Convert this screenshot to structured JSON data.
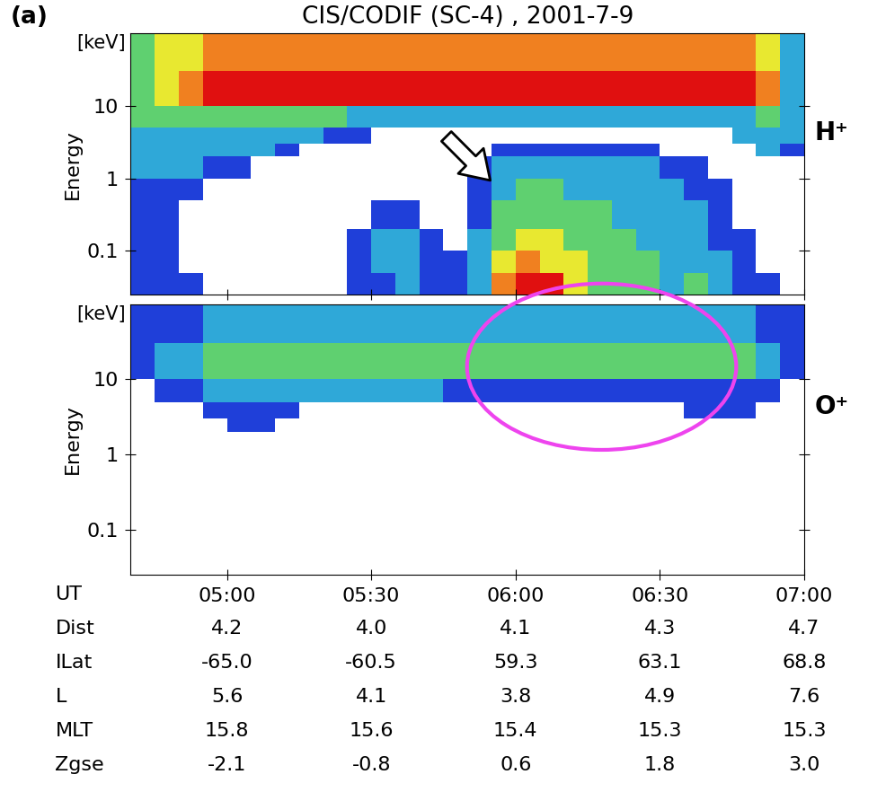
{
  "chart_data": [
    {
      "type": "heatmap",
      "panel_label": "(a)",
      "title": "CIS/CODIF (SC-4) , 2001-7-9",
      "y_label": "Energy",
      "unit_label": "[keV]",
      "species_label": "H⁺",
      "log": "y",
      "tick_labels": "y",
      "xlim": [
        280,
        420
      ],
      "xticks": [
        {
          "value": 300,
          "label": "05:00"
        },
        {
          "value": 330,
          "label": "05:30"
        },
        {
          "value": 360,
          "label": "06:00"
        },
        {
          "value": 390,
          "label": "06:30"
        },
        {
          "value": 420,
          "label": "07:00"
        }
      ],
      "ylim": [
        0.025,
        100
      ],
      "yticks": [
        0.1,
        1,
        10
      ],
      "x_edges": [
        280,
        285,
        290,
        295,
        300,
        305,
        310,
        315,
        320,
        325,
        330,
        335,
        340,
        345,
        350,
        355,
        360,
        365,
        370,
        375,
        380,
        385,
        390,
        395,
        400,
        405,
        410,
        415,
        420
      ],
      "y_edges": [
        0.025,
        0.05,
        0.1,
        0.2,
        0.5,
        1,
        2,
        3,
        5,
        10,
        30,
        100
      ],
      "cell_range": [
        0,
        6
      ],
      "colors": [
        "#ffffff",
        "#1f3fd9",
        "#2fa8d8",
        "#5fd070",
        "#e8e830",
        "#f08020",
        "#e01010"
      ],
      "cells": [
        [
          1,
          1,
          1,
          0,
          0,
          0,
          0,
          0,
          0,
          1,
          1,
          2,
          1,
          1,
          2,
          5,
          6,
          6,
          4,
          3,
          3,
          3,
          2,
          3,
          2,
          1,
          1,
          0
        ],
        [
          1,
          1,
          0,
          0,
          0,
          0,
          0,
          0,
          0,
          1,
          2,
          2,
          1,
          1,
          2,
          4,
          5,
          4,
          4,
          3,
          3,
          3,
          2,
          2,
          2,
          1,
          0,
          0
        ],
        [
          1,
          1,
          0,
          0,
          0,
          0,
          0,
          0,
          0,
          1,
          2,
          2,
          1,
          0,
          2,
          3,
          4,
          4,
          3,
          3,
          3,
          2,
          2,
          2,
          1,
          1,
          0,
          0
        ],
        [
          1,
          1,
          0,
          0,
          0,
          0,
          0,
          0,
          0,
          0,
          1,
          1,
          0,
          0,
          1,
          3,
          3,
          3,
          3,
          3,
          2,
          2,
          2,
          2,
          1,
          0,
          0,
          0
        ],
        [
          1,
          1,
          1,
          0,
          0,
          0,
          0,
          0,
          0,
          0,
          0,
          0,
          0,
          0,
          1,
          2,
          3,
          3,
          2,
          2,
          2,
          2,
          2,
          1,
          1,
          0,
          0,
          0
        ],
        [
          2,
          2,
          2,
          1,
          1,
          0,
          0,
          0,
          0,
          0,
          0,
          0,
          0,
          0,
          1,
          2,
          2,
          2,
          2,
          2,
          2,
          2,
          1,
          1,
          0,
          0,
          0,
          0
        ],
        [
          2,
          2,
          2,
          2,
          2,
          2,
          1,
          0,
          0,
          0,
          0,
          0,
          0,
          0,
          0,
          1,
          1,
          1,
          1,
          1,
          1,
          1,
          0,
          0,
          0,
          0,
          2,
          1
        ],
        [
          2,
          2,
          2,
          2,
          2,
          2,
          2,
          2,
          1,
          1,
          0,
          0,
          0,
          0,
          0,
          0,
          0,
          0,
          0,
          0,
          0,
          0,
          0,
          0,
          0,
          2,
          2,
          2
        ],
        [
          3,
          3,
          3,
          3,
          3,
          3,
          3,
          3,
          3,
          2,
          2,
          2,
          2,
          2,
          2,
          2,
          2,
          2,
          2,
          2,
          2,
          2,
          2,
          2,
          2,
          2,
          3,
          2
        ],
        [
          3,
          4,
          5,
          6,
          6,
          6,
          6,
          6,
          6,
          6,
          6,
          6,
          6,
          6,
          6,
          6,
          6,
          6,
          6,
          6,
          6,
          6,
          6,
          6,
          6,
          6,
          5,
          2
        ],
        [
          3,
          4,
          4,
          5,
          5,
          5,
          5,
          5,
          5,
          5,
          5,
          5,
          5,
          5,
          5,
          5,
          5,
          5,
          5,
          5,
          5,
          5,
          5,
          5,
          5,
          5,
          4,
          2
        ]
      ]
    },
    {
      "type": "heatmap",
      "y_label": "Energy",
      "unit_label": "[keV]",
      "species_label": "O⁺",
      "log": "y",
      "xlim": [
        280,
        420
      ],
      "xticks": [
        {
          "value": 300,
          "label": "05:00"
        },
        {
          "value": 330,
          "label": "05:30"
        },
        {
          "value": 360,
          "label": "06:00"
        },
        {
          "value": 390,
          "label": "06:30"
        },
        {
          "value": 420,
          "label": "07:00"
        }
      ],
      "ylim": [
        0.025,
        100
      ],
      "yticks": [
        0.1,
        1,
        10
      ],
      "x_edges": [
        280,
        285,
        290,
        295,
        300,
        305,
        310,
        315,
        320,
        325,
        330,
        335,
        340,
        345,
        350,
        355,
        360,
        365,
        370,
        375,
        380,
        385,
        390,
        395,
        400,
        405,
        410,
        415,
        420
      ],
      "y_edges": [
        0.025,
        0.05,
        0.1,
        0.2,
        0.5,
        1,
        2,
        3,
        5,
        10,
        30,
        100
      ],
      "cell_range": [
        0,
        6
      ],
      "colors": [
        "#ffffff",
        "#1f3fd9",
        "#2fa8d8",
        "#5fd070",
        "#e8e830",
        "#f08020",
        "#e01010"
      ],
      "cells": [
        [
          0,
          0,
          0,
          0,
          0,
          0,
          0,
          0,
          0,
          0,
          0,
          0,
          0,
          0,
          0,
          0,
          0,
          0,
          0,
          0,
          0,
          0,
          0,
          0,
          0,
          0,
          0,
          0
        ],
        [
          0,
          0,
          0,
          0,
          0,
          0,
          0,
          0,
          0,
          0,
          0,
          0,
          0,
          0,
          0,
          0,
          0,
          0,
          0,
          0,
          0,
          0,
          0,
          0,
          0,
          0,
          0,
          0
        ],
        [
          0,
          0,
          0,
          0,
          0,
          0,
          0,
          0,
          0,
          0,
          0,
          0,
          0,
          0,
          0,
          0,
          0,
          0,
          0,
          0,
          0,
          0,
          0,
          0,
          0,
          0,
          0,
          0
        ],
        [
          0,
          0,
          0,
          0,
          0,
          0,
          0,
          0,
          0,
          0,
          0,
          0,
          0,
          0,
          0,
          0,
          0,
          0,
          0,
          0,
          0,
          0,
          0,
          0,
          0,
          0,
          0,
          0
        ],
        [
          0,
          0,
          0,
          0,
          0,
          0,
          0,
          0,
          0,
          0,
          0,
          0,
          0,
          0,
          0,
          0,
          0,
          0,
          0,
          0,
          0,
          0,
          0,
          0,
          0,
          0,
          0,
          0
        ],
        [
          0,
          0,
          0,
          0,
          0,
          0,
          0,
          0,
          0,
          0,
          0,
          0,
          0,
          0,
          0,
          0,
          0,
          0,
          0,
          0,
          0,
          0,
          0,
          0,
          0,
          0,
          0,
          0
        ],
        [
          0,
          0,
          0,
          0,
          1,
          1,
          0,
          0,
          0,
          0,
          0,
          0,
          0,
          0,
          0,
          0,
          0,
          0,
          0,
          0,
          0,
          0,
          0,
          0,
          0,
          0,
          0,
          0
        ],
        [
          0,
          0,
          0,
          1,
          1,
          1,
          1,
          0,
          0,
          0,
          0,
          0,
          0,
          0,
          0,
          0,
          0,
          0,
          0,
          0,
          0,
          0,
          0,
          1,
          1,
          1,
          0,
          0
        ],
        [
          0,
          1,
          1,
          2,
          2,
          2,
          2,
          2,
          2,
          2,
          2,
          2,
          2,
          1,
          1,
          1,
          1,
          1,
          1,
          1,
          1,
          1,
          1,
          1,
          1,
          1,
          1,
          0
        ],
        [
          1,
          2,
          2,
          3,
          3,
          3,
          3,
          3,
          3,
          3,
          3,
          3,
          3,
          3,
          3,
          3,
          3,
          3,
          3,
          3,
          3,
          3,
          3,
          3,
          3,
          3,
          2,
          1
        ],
        [
          1,
          1,
          1,
          2,
          2,
          2,
          2,
          2,
          2,
          2,
          2,
          2,
          2,
          2,
          2,
          2,
          2,
          2,
          2,
          2,
          2,
          2,
          2,
          2,
          2,
          2,
          1,
          1
        ]
      ],
      "ephemeris": {
        "time_label": "UT",
        "rows": [
          {
            "name": "Dist",
            "values": [
              4.2,
              4.0,
              4.1,
              4.3,
              4.7
            ]
          },
          {
            "name": "ILat",
            "values": [
              -65.0,
              -60.5,
              59.3,
              63.1,
              68.8
            ]
          },
          {
            "name": "L",
            "values": [
              5.6,
              4.1,
              3.8,
              4.9,
              7.6
            ]
          },
          {
            "name": "MLT",
            "values": [
              15.8,
              15.6,
              15.4,
              15.3,
              15.3
            ]
          },
          {
            "name": "Zgse",
            "values": [
              -2.1,
              -0.8,
              0.6,
              1.8,
              3.0
            ]
          }
        ]
      }
    }
  ]
}
